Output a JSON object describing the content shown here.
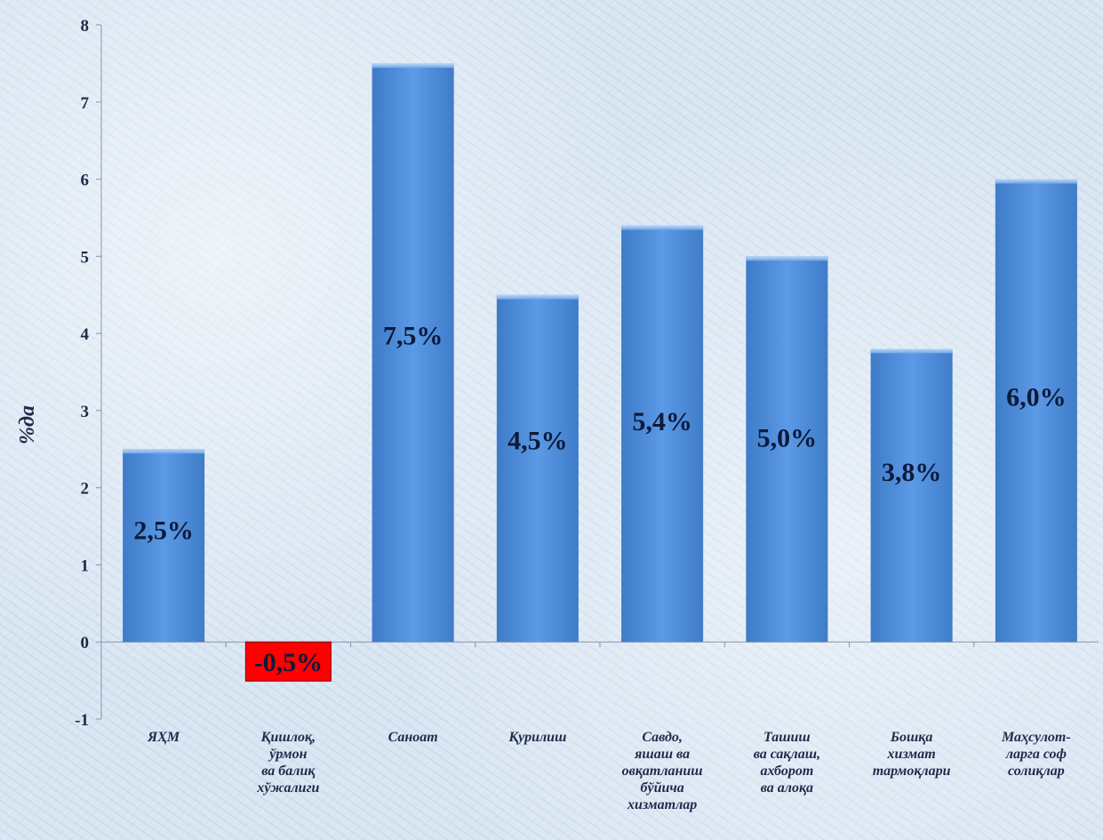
{
  "chart_data": {
    "type": "bar",
    "ylabel": "%да",
    "ylim": [
      -1,
      8
    ],
    "yticks": [
      -1,
      0,
      1,
      2,
      3,
      4,
      5,
      6,
      7,
      8
    ],
    "grid": false,
    "legend": "none",
    "categories": [
      [
        "ЯҲМ"
      ],
      [
        "Қишлоқ,",
        "ўрмон",
        "ва балиқ",
        "хўжалиги"
      ],
      [
        "Саноат"
      ],
      [
        "Қурилиш"
      ],
      [
        "Савдо,",
        "яшаш ва",
        "овқатланиш",
        "бўйича",
        "хизматлар"
      ],
      [
        "Ташиш",
        "ва сақлаш,",
        "ахборот",
        "ва алоқа"
      ],
      [
        "Бошқа",
        "хизмат",
        "тармоқлари"
      ],
      [
        "Маҳсулот-",
        "ларга соф",
        "солиқлар"
      ]
    ],
    "values": [
      2.5,
      -0.5,
      7.5,
      4.5,
      5.4,
      5.0,
      3.8,
      6.0
    ],
    "data_labels": [
      "2,5%",
      "-0,5%",
      "7,5%",
      "4,5%",
      "5,4%",
      "5,0%",
      "3,8%",
      "6,0%"
    ],
    "colors": {
      "positive": "#4f8fdc",
      "negative": "#ff0000",
      "axis": "#8a96a8",
      "text": "#1f2a4a"
    }
  }
}
